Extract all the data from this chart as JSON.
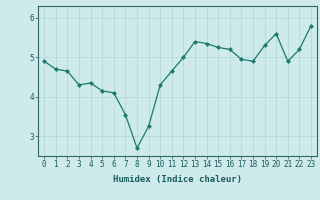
{
  "x": [
    0,
    1,
    2,
    3,
    4,
    5,
    6,
    7,
    8,
    9,
    10,
    11,
    12,
    13,
    14,
    15,
    16,
    17,
    18,
    19,
    20,
    21,
    22,
    23
  ],
  "y": [
    4.9,
    4.7,
    4.65,
    4.3,
    4.35,
    4.15,
    4.1,
    3.55,
    2.7,
    3.25,
    4.3,
    4.65,
    5.0,
    5.4,
    5.35,
    5.25,
    5.2,
    4.95,
    4.9,
    5.3,
    5.6,
    4.9,
    5.2,
    5.8
  ],
  "line_color": "#1a7a6e",
  "marker": "D",
  "markersize": 2.0,
  "linewidth": 0.9,
  "xlabel": "Humidex (Indice chaleur)",
  "xlabel_fontsize": 6.5,
  "bg_color": "#ceeaea",
  "grid_color": "#b8d8d8",
  "axis_color": "#336666",
  "tick_color": "#1a5c5c",
  "tick_fontsize": 5.5,
  "ylim": [
    2.5,
    6.3
  ],
  "yticks": [
    3,
    4,
    5,
    6
  ],
  "xlim": [
    -0.5,
    23.5
  ]
}
